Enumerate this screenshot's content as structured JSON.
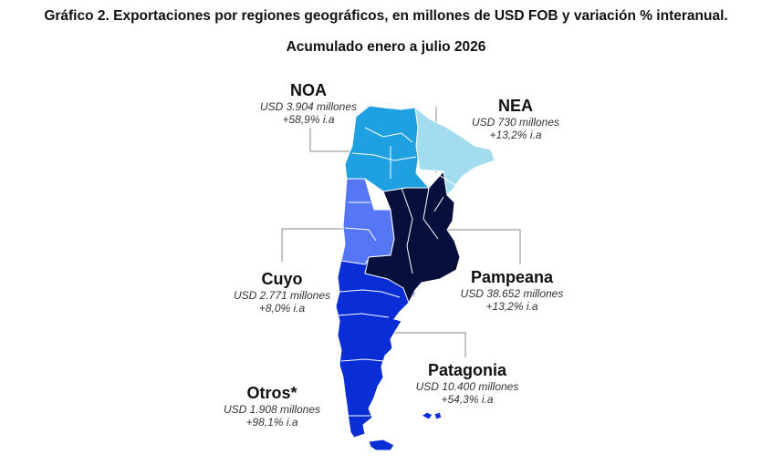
{
  "title": "Gráfico 2. Exportaciones por regiones geográficos, en millones de USD FOB y variación % interanual.",
  "subtitle": "Acumulado enero a julio 2026",
  "colors": {
    "noa": "#1fa0e0",
    "nea": "#a4dcef",
    "cuyo": "#5677f5",
    "pampeana": "#07103d",
    "patagonia": "#0a2ed6",
    "otros": "#0a2ed6",
    "border": "#ffffff",
    "leader": "#8a8a8a"
  },
  "regions": [
    {
      "id": "noa",
      "name": "NOA",
      "value": "USD 3.904 millones",
      "variation": "+58,9% i.a"
    },
    {
      "id": "nea",
      "name": "NEA",
      "value": "USD 730 millones",
      "variation": "+13,2% i.a"
    },
    {
      "id": "cuyo",
      "name": "Cuyo",
      "value": "USD 2.771 millones",
      "variation": "+8,0% i.a"
    },
    {
      "id": "pampeana",
      "name": "Pampeana",
      "value": "USD 38.652 millones",
      "variation": "+13,2% i.a"
    },
    {
      "id": "patagonia",
      "name": "Patagonia",
      "value": "USD 10.400 millones",
      "variation": "+54,3% i.a"
    },
    {
      "id": "otros",
      "name": "Otros*",
      "value": "USD 1.908 millones",
      "variation": "+98,1% i.a"
    }
  ]
}
